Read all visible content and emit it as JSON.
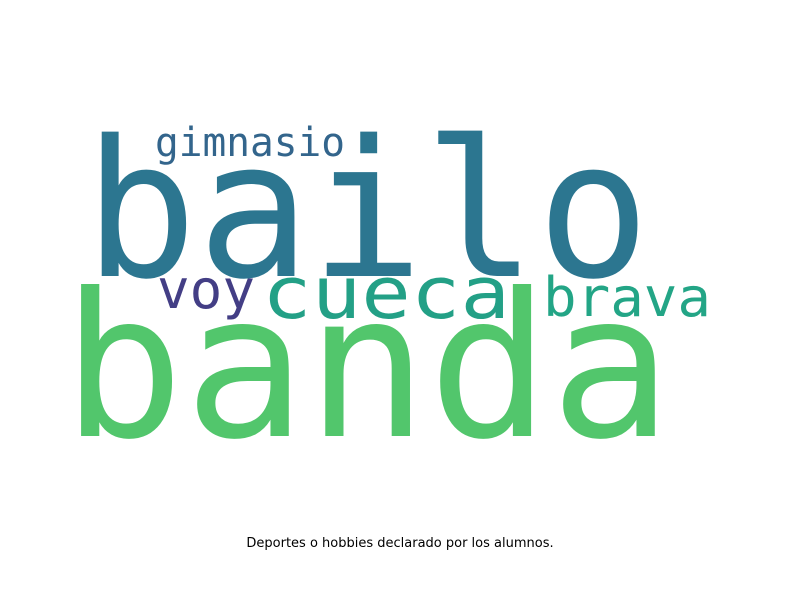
{
  "chart_data": {
    "type": "wordcloud",
    "words": [
      {
        "text": "banda",
        "color": "#52c66c"
      },
      {
        "text": "bailo",
        "color": "#2c7690"
      },
      {
        "text": "cueca",
        "color": "#23a086"
      },
      {
        "text": "brava",
        "color": "#23a586"
      },
      {
        "text": "voy",
        "color": "#433e85"
      },
      {
        "text": "gimnasio",
        "color": "#33658c"
      }
    ]
  },
  "caption": "Deportes o hobbies declarado por los alumnos.",
  "colors": {
    "background": "#ffffff",
    "caption_text": "#000000"
  }
}
